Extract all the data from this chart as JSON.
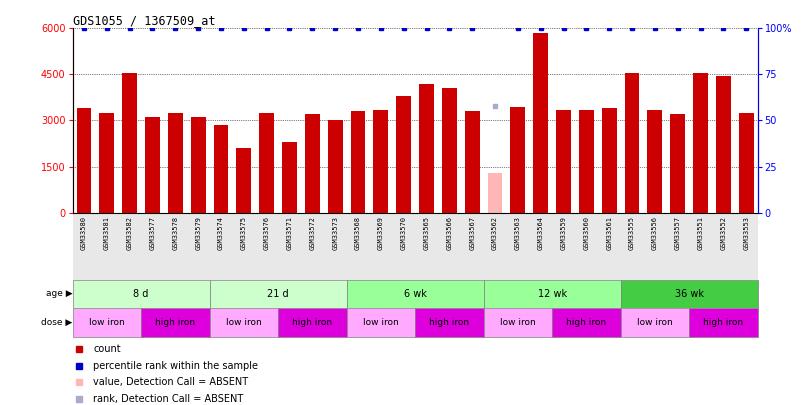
{
  "title": "GDS1055 / 1367509_at",
  "samples": [
    "GSM33580",
    "GSM33581",
    "GSM33582",
    "GSM33577",
    "GSM33578",
    "GSM33579",
    "GSM33574",
    "GSM33575",
    "GSM33576",
    "GSM33571",
    "GSM33572",
    "GSM33573",
    "GSM33568",
    "GSM33569",
    "GSM33570",
    "GSM33565",
    "GSM33566",
    "GSM33567",
    "GSM33562",
    "GSM33563",
    "GSM33564",
    "GSM33559",
    "GSM33560",
    "GSM33561",
    "GSM33555",
    "GSM33556",
    "GSM33557",
    "GSM33551",
    "GSM33552",
    "GSM33553"
  ],
  "counts": [
    3400,
    3250,
    4550,
    3100,
    3250,
    3100,
    2850,
    2100,
    3250,
    2300,
    3200,
    3000,
    3300,
    3350,
    3800,
    4200,
    4050,
    3300,
    1300,
    3450,
    5850,
    3350,
    3350,
    3400,
    4550,
    3350,
    3200,
    4550,
    4450,
    3250
  ],
  "absent_bar": [
    false,
    false,
    false,
    false,
    false,
    false,
    false,
    false,
    false,
    false,
    false,
    false,
    false,
    false,
    false,
    false,
    false,
    false,
    true,
    false,
    false,
    false,
    false,
    false,
    false,
    false,
    false,
    false,
    false,
    false
  ],
  "percentile_ranks": [
    100,
    100,
    100,
    100,
    100,
    100,
    100,
    100,
    100,
    100,
    100,
    100,
    100,
    100,
    100,
    100,
    100,
    100,
    58,
    100,
    100,
    100,
    100,
    100,
    100,
    100,
    100,
    100,
    100,
    100
  ],
  "absent_rank": [
    false,
    false,
    false,
    false,
    false,
    false,
    false,
    false,
    false,
    false,
    false,
    false,
    false,
    false,
    false,
    false,
    false,
    false,
    true,
    false,
    false,
    false,
    false,
    false,
    false,
    false,
    false,
    false,
    false,
    false
  ],
  "bar_color_normal": "#cc0000",
  "bar_color_absent": "#ffb6b6",
  "rank_color_normal": "#0000cc",
  "rank_color_absent": "#aaaacc",
  "ylim_left": [
    0,
    6000
  ],
  "ylim_right": [
    0,
    100
  ],
  "yticks_left": [
    0,
    1500,
    3000,
    4500,
    6000
  ],
  "yticks_right": [
    0,
    25,
    50,
    75,
    100
  ],
  "age_groups": [
    {
      "label": "8 d",
      "start": 0,
      "end": 6,
      "color": "#ccffcc"
    },
    {
      "label": "21 d",
      "start": 6,
      "end": 12,
      "color": "#ccffcc"
    },
    {
      "label": "6 wk",
      "start": 12,
      "end": 18,
      "color": "#99ff99"
    },
    {
      "label": "12 wk",
      "start": 18,
      "end": 24,
      "color": "#99ff99"
    },
    {
      "label": "36 wk",
      "start": 24,
      "end": 30,
      "color": "#44cc44"
    }
  ],
  "dose_groups": [
    {
      "label": "low iron",
      "start": 0,
      "end": 3,
      "color": "#ffaaff"
    },
    {
      "label": "high iron",
      "start": 3,
      "end": 6,
      "color": "#dd00dd"
    },
    {
      "label": "low iron",
      "start": 6,
      "end": 9,
      "color": "#ffaaff"
    },
    {
      "label": "high iron",
      "start": 9,
      "end": 12,
      "color": "#dd00dd"
    },
    {
      "label": "low iron",
      "start": 12,
      "end": 15,
      "color": "#ffaaff"
    },
    {
      "label": "high iron",
      "start": 15,
      "end": 18,
      "color": "#dd00dd"
    },
    {
      "label": "low iron",
      "start": 18,
      "end": 21,
      "color": "#ffaaff"
    },
    {
      "label": "high iron",
      "start": 21,
      "end": 24,
      "color": "#dd00dd"
    },
    {
      "label": "low iron",
      "start": 24,
      "end": 27,
      "color": "#ffaaff"
    },
    {
      "label": "high iron",
      "start": 27,
      "end": 30,
      "color": "#dd00dd"
    }
  ],
  "legend_items": [
    {
      "label": "count",
      "color": "#cc0000"
    },
    {
      "label": "percentile rank within the sample",
      "color": "#0000cc"
    },
    {
      "label": "value, Detection Call = ABSENT",
      "color": "#ffb6b6"
    },
    {
      "label": "rank, Detection Call = ABSENT",
      "color": "#aaaacc"
    }
  ],
  "fig_width": 8.06,
  "fig_height": 4.05,
  "dpi": 100
}
